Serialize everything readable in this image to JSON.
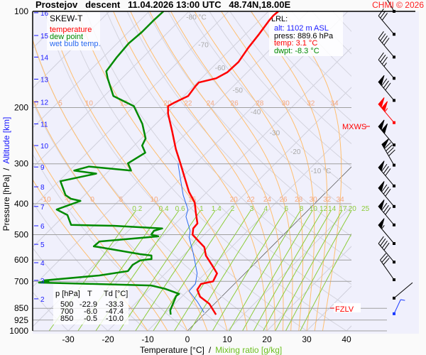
{
  "header": {
    "title": "Prostejov   descent   11.04.2026 13:00 UTC   48.74N,18.00E",
    "copyright": "CHMI © 2026"
  },
  "legend": {
    "title": "SKEW-T",
    "temperature": "temperature",
    "dew_point": "dew point",
    "wet_bulb": "wet bulb temp."
  },
  "lrl": {
    "title": "LRL:",
    "alt": "alt: 1102 m ASL",
    "press": "press: 889.6 hPa",
    "temp": "temp: 3.1 °C",
    "dwpt": "dwpt: -8.3 °C"
  },
  "table": {
    "headers": [
      "p [hPa]",
      "T",
      "Td [°C]"
    ],
    "rows": [
      [
        "500",
        "-22.9",
        "-33.3"
      ],
      [
        "700",
        "-6.0",
        "-47.4"
      ],
      [
        "850",
        "-0.5",
        "-10.0"
      ]
    ]
  },
  "markers": {
    "mxws": "MXWS",
    "fzlv": "FZLV"
  },
  "axes": {
    "y_title_pressure": "Pressure [hPa]",
    "y_title_sep": "/",
    "y_title_altitude": "Altitude [km]",
    "x_title_temperature": "Temperature [°C]",
    "x_title_sep": "/",
    "x_title_mixing": "Mixing ratio [g/kg]"
  },
  "colors": {
    "temperature": "#ff0000",
    "dew_point": "#008a00",
    "wet_bulb": "#2a6af0",
    "altitude": "#1a1aff",
    "mixing_ratio": "#8ccc3a",
    "moist_adiabat": "#ffbf70",
    "grid": "#b8b8c8",
    "isobar": "#a0a0a0",
    "freezing_isotherm": "#606060",
    "background": "#f0f0fc",
    "mxws_barb": "#ff0000",
    "surface_barb": "#1a3aff"
  },
  "chart_data": {
    "type": "line",
    "subtype": "skew-t log-p",
    "xlabel": "Temperature [°C] / Mixing ratio [g/kg]",
    "ylabel": "Pressure [hPa] / Altitude [km]",
    "ylim": [
      1000,
      100
    ],
    "y_scale": "log",
    "xlim_at_1000hPa": [
      -38,
      42
    ],
    "pressure_ticks": [
      "100",
      "200",
      "300",
      "400",
      "500",
      "600",
      "700",
      "850",
      "925",
      "1000"
    ],
    "temperature_ticks": [
      "-30",
      "-20",
      "-10",
      "0",
      "10",
      "20",
      "30",
      "40"
    ],
    "altitude_ticks": [
      {
        "km": "2",
        "p": 794
      },
      {
        "km": "3",
        "p": 695
      },
      {
        "km": "4",
        "p": 612
      },
      {
        "km": "5",
        "p": 536
      },
      {
        "km": "6",
        "p": 469
      },
      {
        "km": "7",
        "p": 408
      },
      {
        "km": "8",
        "p": 354
      },
      {
        "km": "9",
        "p": 307
      },
      {
        "km": "10",
        "p": 263
      },
      {
        "km": "11",
        "p": 225
      },
      {
        "km": "12",
        "p": 192
      },
      {
        "km": "13",
        "p": 163
      },
      {
        "km": "14",
        "p": 139
      },
      {
        "km": "15",
        "p": 119
      },
      {
        "km": "16",
        "p": 101
      }
    ],
    "isotherm_labels": [
      "-80 °C",
      "-70",
      "-60",
      "-50",
      "-40",
      "-30",
      "-20",
      "-10 °C"
    ],
    "isotherm_label_values": [
      -80,
      -70,
      -60,
      -50,
      -40,
      -30,
      -20,
      -10
    ],
    "moist_adiabats": [
      -10,
      -5,
      0,
      5,
      10,
      15,
      20,
      22,
      24,
      26,
      28,
      30,
      32,
      34
    ],
    "moist_labels_upper": [
      "0",
      "5",
      "10",
      "15",
      "20",
      "22",
      "24",
      "26",
      "28",
      "30",
      "32",
      "34"
    ],
    "moist_labels_lower": [
      "-10",
      "-5",
      "0",
      "5",
      "10",
      "15",
      "20",
      "22",
      "24",
      "26",
      "28",
      "30",
      "32",
      "34"
    ],
    "mixing_ratios": [
      0.2,
      0.4,
      0.6,
      1,
      1.4,
      2,
      3,
      4,
      6,
      8,
      10,
      12,
      14,
      17,
      20,
      25
    ],
    "mixing_labels": [
      "0.2",
      "0.4",
      "0.6",
      "1",
      "1.4",
      "2",
      "3",
      "4",
      "6",
      "8",
      "10",
      "12",
      "14",
      "17",
      "20",
      "25"
    ],
    "series": [
      {
        "name": "temperature",
        "points": [
          [
            889.6,
            3.1
          ],
          [
            823,
            -1.3
          ],
          [
            782,
            -5.4
          ],
          [
            743,
            -7.9
          ],
          [
            713,
            -8.4
          ],
          [
            700,
            -6.0
          ],
          [
            661,
            -7.0
          ],
          [
            621,
            -10.5
          ],
          [
            581,
            -14.3
          ],
          [
            547,
            -16.8
          ],
          [
            525,
            -19.6
          ],
          [
            500,
            -22.9
          ],
          [
            478,
            -24.3
          ],
          [
            461,
            -24.5
          ],
          [
            428,
            -27.5
          ],
          [
            396,
            -30.5
          ],
          [
            367,
            -34.6
          ],
          [
            331,
            -39.3
          ],
          [
            299,
            -43.9
          ],
          [
            270,
            -48.6
          ],
          [
            237,
            -54.1
          ],
          [
            209,
            -59.5
          ],
          [
            198,
            -61.4
          ],
          [
            193,
            -60.7
          ],
          [
            184,
            -58.9
          ],
          [
            172,
            -59.5
          ],
          [
            167,
            -59.6
          ],
          [
            162,
            -56.3
          ],
          [
            155,
            -55.0
          ],
          [
            144,
            -54.8
          ],
          [
            130,
            -55.9
          ],
          [
            118,
            -56.6
          ],
          [
            107,
            -57.5
          ],
          [
            103,
            -57.7
          ],
          [
            100,
            -57.5
          ]
        ]
      },
      {
        "name": "dew point",
        "points": [
          [
            889.6,
            -8.3
          ],
          [
            862,
            -9.5
          ],
          [
            778,
            -11.6
          ],
          [
            766,
            -11.4
          ],
          [
            739,
            -16.1
          ],
          [
            721,
            -20.5
          ],
          [
            713,
            -35.7
          ],
          [
            706,
            -49.5
          ],
          [
            700,
            -47.4
          ],
          [
            695,
            -48.6
          ],
          [
            671,
            -36.1
          ],
          [
            650,
            -30.0
          ],
          [
            621,
            -30.4
          ],
          [
            602,
            -29.6
          ],
          [
            596,
            -27.1
          ],
          [
            581,
            -28.0
          ],
          [
            575,
            -31.3
          ],
          [
            547,
            -43.2
          ],
          [
            544,
            -44.8
          ],
          [
            525,
            -44.6
          ],
          [
            506,
            -31.1
          ],
          [
            500,
            -33.3
          ],
          [
            486,
            -33.6
          ],
          [
            478,
            -32.1
          ],
          [
            469,
            -45.0
          ],
          [
            466,
            -55.9
          ],
          [
            434,
            -59.3
          ],
          [
            417,
            -63.4
          ],
          [
            392,
            -59.6
          ],
          [
            386,
            -62.5
          ],
          [
            376,
            -64.8
          ],
          [
            340,
            -69.6
          ],
          [
            322,
            -62.5
          ],
          [
            315,
            -68.8
          ],
          [
            306,
            -66.1
          ],
          [
            315,
            -54.5
          ],
          [
            299,
            -57.1
          ],
          [
            277,
            -55.4
          ],
          [
            263,
            -58.0
          ],
          [
            250,
            -58.9
          ],
          [
            225,
            -63.4
          ],
          [
            198,
            -70.0
          ],
          [
            184,
            -77.7
          ],
          [
            162,
            -83.6
          ],
          [
            154,
            -85.7
          ],
          [
            139,
            -86.6
          ],
          [
            126,
            -87.1
          ],
          [
            116,
            -86.6
          ],
          [
            107,
            -86.6
          ],
          [
            100,
            -86.4
          ]
        ]
      },
      {
        "name": "wet bulb temp.",
        "points": [
          [
            875,
            -0.5
          ],
          [
            811,
            -4.8
          ],
          [
            751,
            -9.6
          ],
          [
            713,
            -9.8
          ],
          [
            661,
            -12.0
          ],
          [
            612,
            -15.2
          ],
          [
            567,
            -18.4
          ],
          [
            511,
            -23.0
          ],
          [
            486,
            -24.5
          ],
          [
            439,
            -29.1
          ],
          [
            417,
            -30.4
          ],
          [
            376,
            -35.2
          ],
          [
            331,
            -40.4
          ],
          [
            299,
            -44.5
          ]
        ]
      }
    ],
    "wind_barbs_kt": [
      {
        "p": 100,
        "dir": 330,
        "spd": 10
      },
      {
        "p": 118,
        "dir": 320,
        "spd": 30
      },
      {
        "p": 139,
        "dir": 320,
        "spd": 40
      },
      {
        "p": 162,
        "dir": 320,
        "spd": 35
      },
      {
        "p": 190,
        "dir": 320,
        "spd": 80
      },
      {
        "p": 223,
        "dir": 320,
        "spd": 105,
        "max_wind": true
      },
      {
        "p": 262,
        "dir": 320,
        "spd": 100
      },
      {
        "p": 303,
        "dir": 330,
        "spd": 90
      },
      {
        "p": 352,
        "dir": 320,
        "spd": 80
      },
      {
        "p": 408,
        "dir": 320,
        "spd": 80
      },
      {
        "p": 466,
        "dir": 320,
        "spd": 80
      },
      {
        "p": 533,
        "dir": 320,
        "spd": 55
      },
      {
        "p": 609,
        "dir": 320,
        "spd": 40
      },
      {
        "p": 692,
        "dir": 325,
        "spd": 30
      },
      {
        "p": 790,
        "dir": 50,
        "spd": 0
      },
      {
        "p": 884,
        "dir": 25,
        "spd": 5,
        "surface": true
      }
    ],
    "freezing_level_hPa": 853,
    "grid": true
  }
}
